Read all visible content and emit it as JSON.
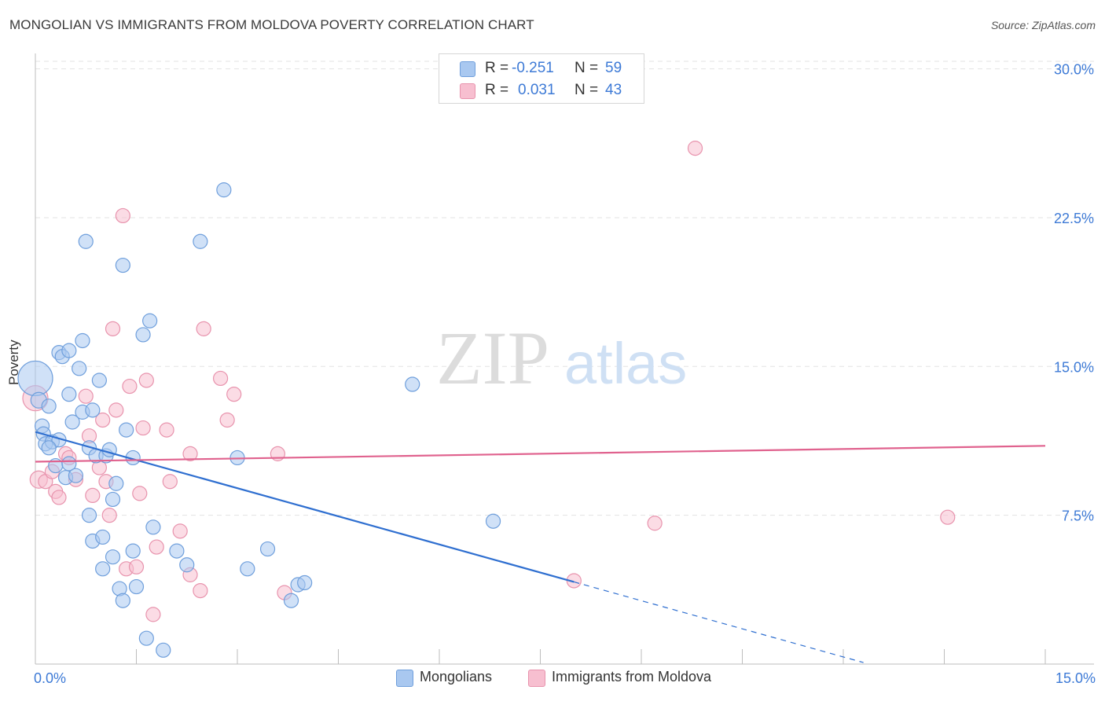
{
  "header": {
    "title": "MONGOLIAN VS IMMIGRANTS FROM MOLDOVA POVERTY CORRELATION CHART",
    "source": "Source: ZipAtlas.com"
  },
  "watermark": {
    "zip": "ZIP",
    "atlas": "atlas"
  },
  "legend": {
    "series1": {
      "r_label": "R =",
      "r_value": "-0.251",
      "n_label": "N =",
      "n_value": "59"
    },
    "series2": {
      "r_label": "R =",
      "r_value": "0.031",
      "n_label": "N =",
      "n_value": "43"
    }
  },
  "bottom_legend": {
    "series1": "Mongolians",
    "series2": "Immigrants from Moldova"
  },
  "colors": {
    "series1_fill": "#a9c8f0",
    "series1_stroke": "#6f9fdc",
    "series1_line": "#2f6fd0",
    "series2_fill": "#f7bfd0",
    "series2_stroke": "#e893ad",
    "series2_line": "#e0628e",
    "axis_text": "#3d7ad6",
    "grid": "#e3e3e3"
  },
  "chart_data": {
    "type": "scatter",
    "title": "MONGOLIAN VS IMMIGRANTS FROM MOLDOVA POVERTY CORRELATION CHART",
    "xlabel": "",
    "ylabel": "Poverty",
    "xlim": [
      0,
      15
    ],
    "ylim": [
      0,
      30.5
    ],
    "x_tick_labels": [
      "0.0%",
      "15.0%"
    ],
    "y_ticks": [
      7.5,
      15.0,
      22.5,
      30.0
    ],
    "y_tick_labels": [
      "7.5%",
      "15.0%",
      "22.5%",
      "30.0%"
    ],
    "series": [
      {
        "name": "Mongolians",
        "r": -0.251,
        "n": 59,
        "trend": {
          "x_start": 0.0,
          "y_start": 11.7,
          "x_end_solid": 8.0,
          "x_end_dashed": 12.3,
          "slope": -0.945
        },
        "points": [
          [
            0.0,
            14.4,
            22
          ],
          [
            0.05,
            13.3,
            10
          ],
          [
            0.1,
            12.0,
            9
          ],
          [
            0.12,
            11.6,
            9
          ],
          [
            0.15,
            11.1,
            9
          ],
          [
            0.2,
            13.0,
            9
          ],
          [
            0.25,
            11.2,
            9
          ],
          [
            0.3,
            10.0,
            9
          ],
          [
            0.35,
            11.3,
            9
          ],
          [
            0.2,
            10.9,
            9
          ],
          [
            0.35,
            15.7,
            9
          ],
          [
            0.4,
            15.5,
            9
          ],
          [
            0.5,
            15.8,
            9
          ],
          [
            0.45,
            9.4,
            9
          ],
          [
            0.5,
            10.1,
            9
          ],
          [
            0.5,
            13.6,
            9
          ],
          [
            0.55,
            12.2,
            9
          ],
          [
            0.6,
            9.5,
            9
          ],
          [
            0.65,
            14.9,
            9
          ],
          [
            0.7,
            16.3,
            9
          ],
          [
            0.75,
            21.3,
            9
          ],
          [
            0.7,
            12.7,
            9
          ],
          [
            0.8,
            10.9,
            9
          ],
          [
            0.85,
            12.8,
            9
          ],
          [
            0.9,
            10.5,
            9
          ],
          [
            0.95,
            14.3,
            9
          ],
          [
            0.8,
            7.5,
            9
          ],
          [
            0.85,
            6.2,
            9
          ],
          [
            1.0,
            4.8,
            9
          ],
          [
            1.0,
            6.4,
            9
          ],
          [
            1.05,
            10.5,
            9
          ],
          [
            1.1,
            10.8,
            9
          ],
          [
            1.15,
            8.3,
            9
          ],
          [
            1.15,
            5.4,
            9
          ],
          [
            1.2,
            9.1,
            9
          ],
          [
            1.25,
            3.8,
            9
          ],
          [
            1.3,
            3.2,
            9
          ],
          [
            1.3,
            20.1,
            9
          ],
          [
            1.35,
            11.8,
            9
          ],
          [
            1.45,
            5.7,
            9
          ],
          [
            1.45,
            10.4,
            9
          ],
          [
            1.5,
            3.9,
            9
          ],
          [
            1.6,
            16.6,
            9
          ],
          [
            1.65,
            1.3,
            9
          ],
          [
            1.7,
            17.3,
            9
          ],
          [
            1.75,
            6.9,
            9
          ],
          [
            1.9,
            0.7,
            9
          ],
          [
            2.1,
            5.7,
            9
          ],
          [
            2.25,
            5.0,
            9
          ],
          [
            2.45,
            21.3,
            9
          ],
          [
            2.8,
            23.9,
            9
          ],
          [
            3.0,
            10.4,
            9
          ],
          [
            3.15,
            4.8,
            9
          ],
          [
            3.45,
            5.8,
            9
          ],
          [
            3.9,
            4.0,
            9
          ],
          [
            4.0,
            4.1,
            9
          ],
          [
            3.8,
            3.2,
            9
          ],
          [
            5.6,
            14.1,
            9
          ],
          [
            6.8,
            7.2,
            9
          ]
        ]
      },
      {
        "name": "Immigrants from Moldova",
        "r": 0.031,
        "n": 43,
        "trend": {
          "x_start": 0.0,
          "y_start": 10.2,
          "x_end": 15.0,
          "y_end": 11.0
        },
        "points": [
          [
            0.0,
            13.4,
            16
          ],
          [
            0.05,
            9.3,
            11
          ],
          [
            0.15,
            9.2,
            9
          ],
          [
            0.25,
            9.7,
            9
          ],
          [
            0.3,
            8.7,
            9
          ],
          [
            0.35,
            8.4,
            9
          ],
          [
            0.45,
            10.6,
            9
          ],
          [
            0.5,
            10.4,
            9
          ],
          [
            0.6,
            9.3,
            9
          ],
          [
            0.75,
            13.5,
            9
          ],
          [
            0.8,
            11.5,
            9
          ],
          [
            0.85,
            8.5,
            9
          ],
          [
            0.95,
            9.9,
            9
          ],
          [
            1.0,
            12.3,
            9
          ],
          [
            1.05,
            9.2,
            9
          ],
          [
            1.1,
            7.5,
            9
          ],
          [
            1.15,
            16.9,
            9
          ],
          [
            1.2,
            12.8,
            9
          ],
          [
            1.3,
            22.6,
            9
          ],
          [
            1.35,
            4.8,
            9
          ],
          [
            1.4,
            14.0,
            9
          ],
          [
            1.5,
            4.9,
            9
          ],
          [
            1.55,
            8.6,
            9
          ],
          [
            1.6,
            11.9,
            9
          ],
          [
            1.65,
            14.3,
            9
          ],
          [
            1.75,
            2.5,
            9
          ],
          [
            1.8,
            5.9,
            9
          ],
          [
            1.95,
            11.8,
            9
          ],
          [
            2.0,
            9.2,
            9
          ],
          [
            2.15,
            6.7,
            9
          ],
          [
            2.3,
            10.6,
            9
          ],
          [
            2.3,
            4.5,
            9
          ],
          [
            2.45,
            3.7,
            9
          ],
          [
            2.5,
            16.9,
            9
          ],
          [
            2.75,
            14.4,
            9
          ],
          [
            2.85,
            12.3,
            9
          ],
          [
            2.95,
            13.6,
            9
          ],
          [
            3.6,
            10.6,
            9
          ],
          [
            3.7,
            3.6,
            9
          ],
          [
            8.0,
            4.2,
            9
          ],
          [
            9.2,
            7.1,
            9
          ],
          [
            9.8,
            26.0,
            9
          ],
          [
            13.55,
            7.4,
            9
          ]
        ]
      }
    ]
  }
}
